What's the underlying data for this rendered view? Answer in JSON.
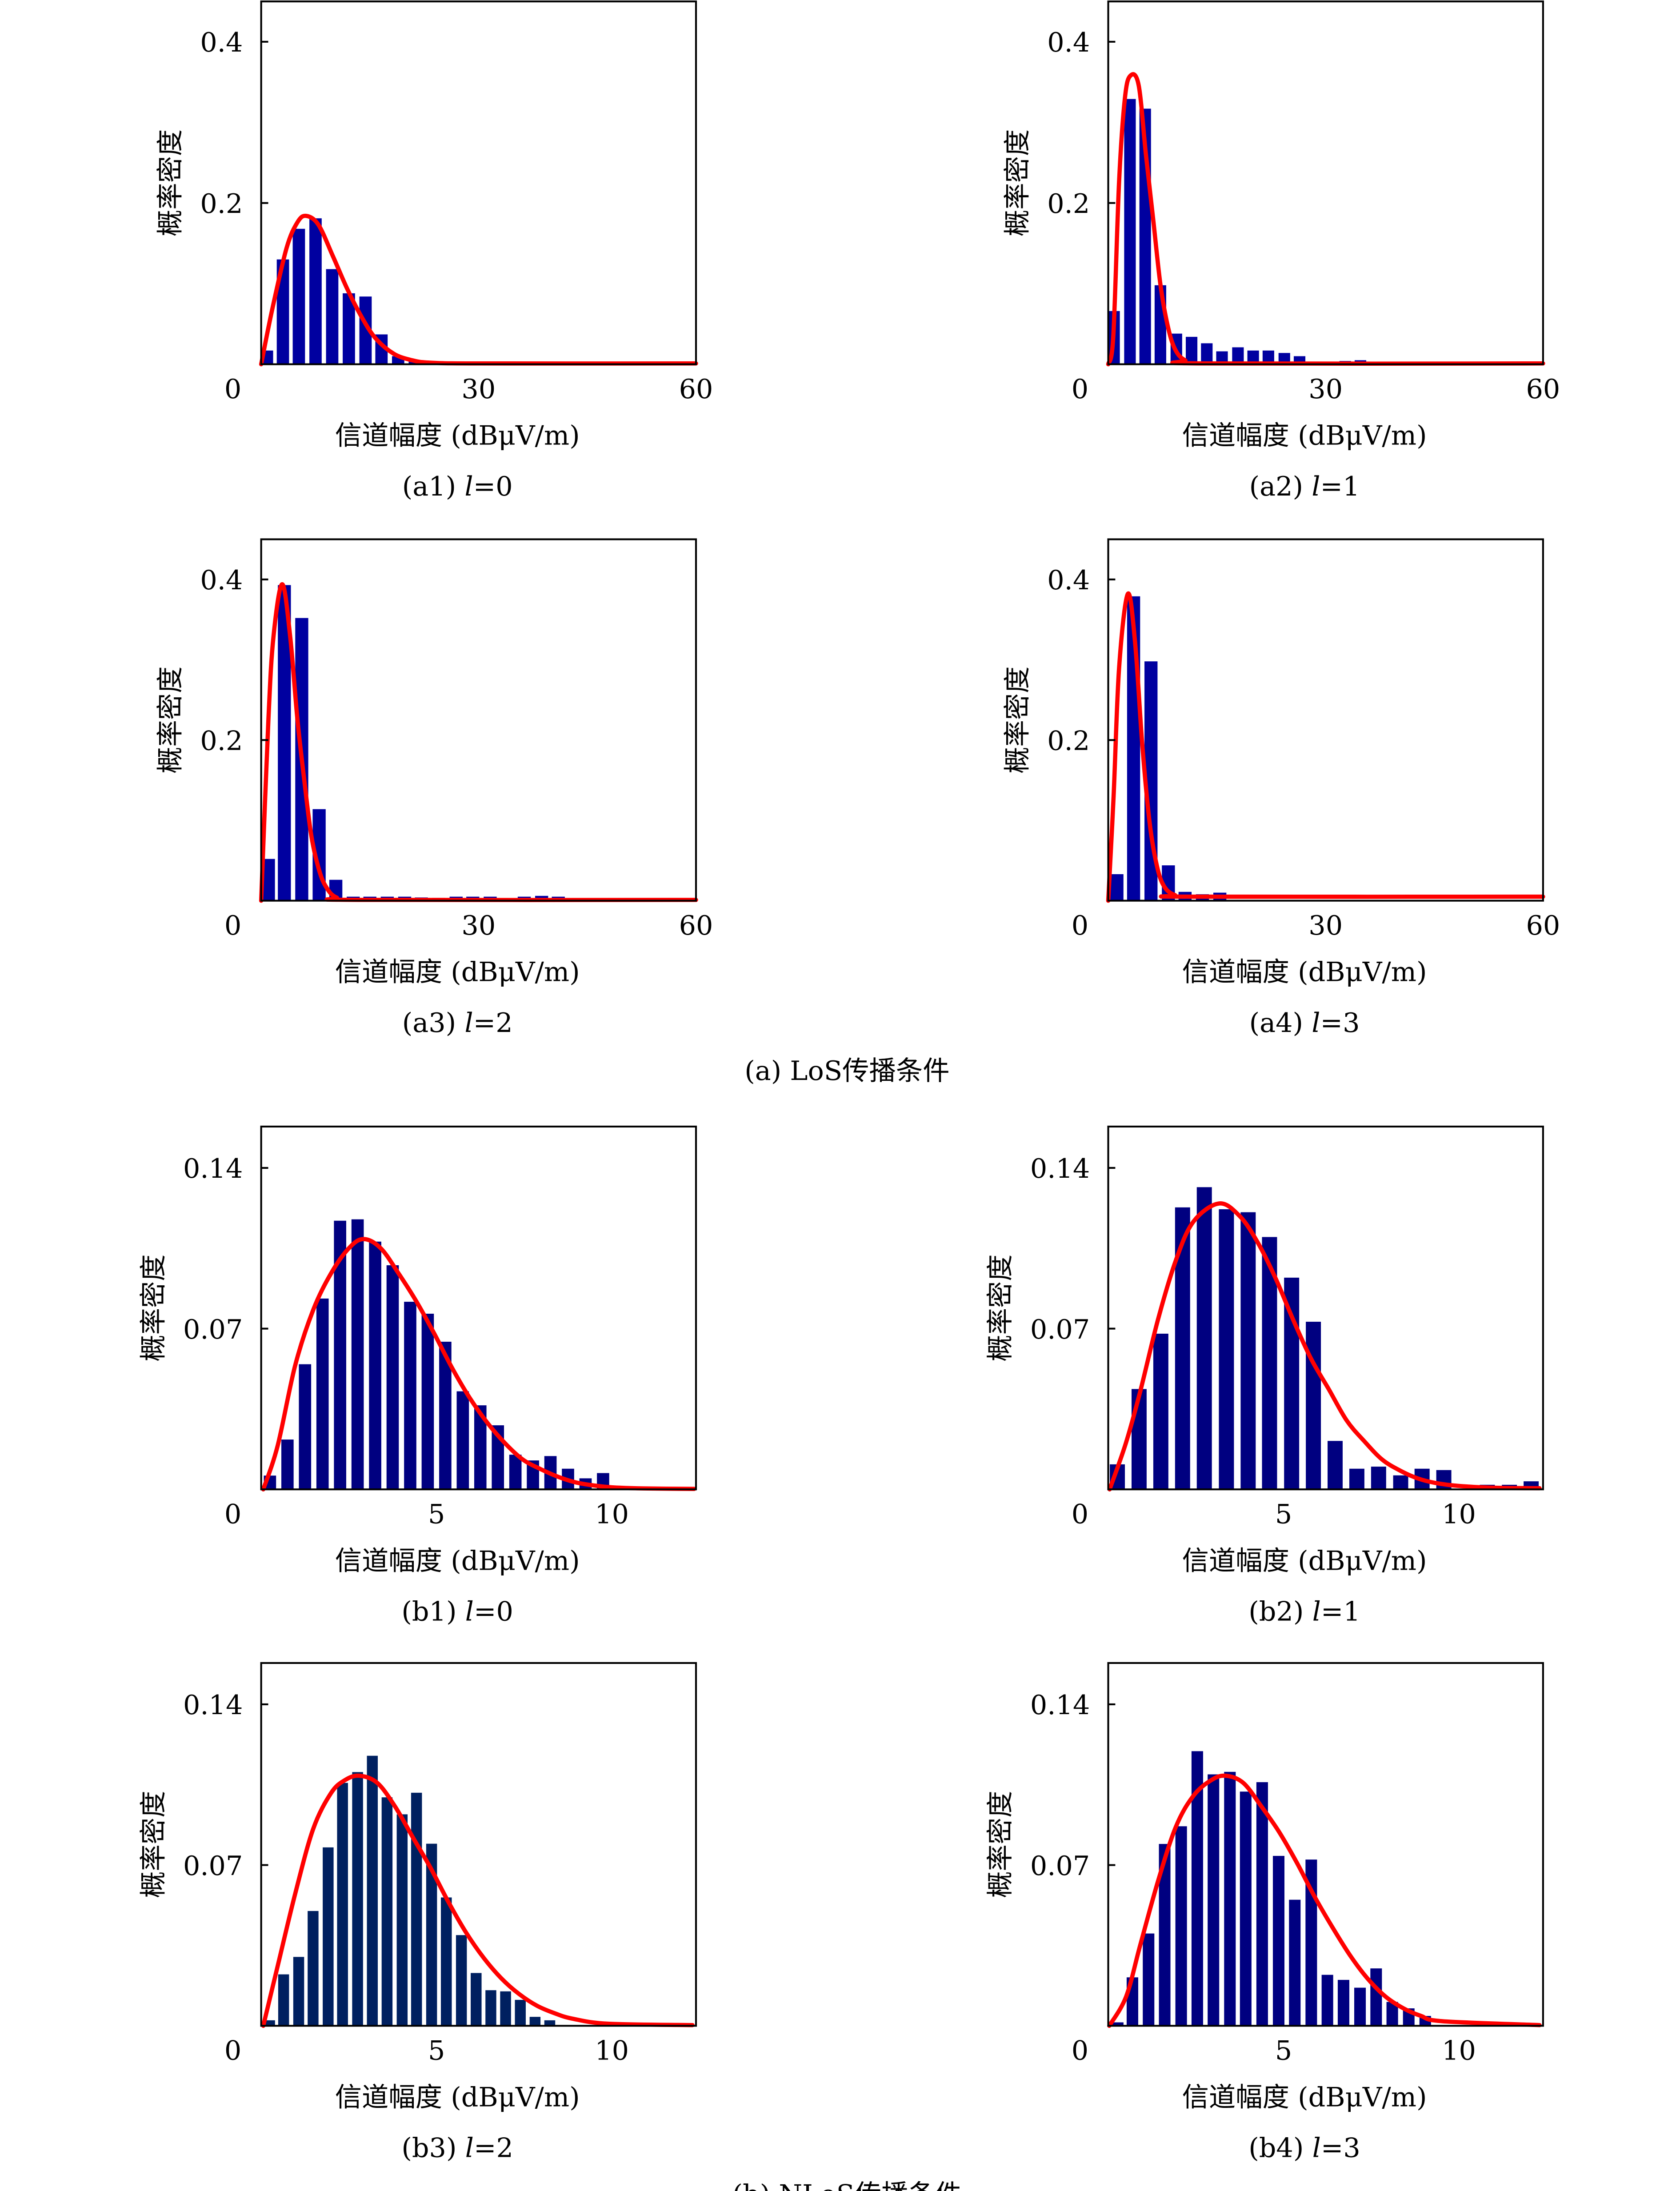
{
  "figure": {
    "group_a_caption": "(a) LoS传播条件",
    "group_b_caption": "(b) NLoS传播条件"
  },
  "colors": {
    "fit_curve": "#FF0000",
    "frame": "#000000"
  },
  "chart_data": [
    {
      "id": "a1",
      "type": "bar",
      "group": "a",
      "caption": {
        "label": "(a1)",
        "var": "l",
        "eq": "=0"
      },
      "xlabel": "信道幅度 (dBμV/m)",
      "ylabel": "概率密度",
      "xlim": [
        0,
        60
      ],
      "ylim": [
        0,
        0.45
      ],
      "xticks": [
        30,
        60
      ],
      "xtick_labels": [
        "30",
        "60"
      ],
      "yticks": [
        0,
        0.2,
        0.4
      ],
      "ytick_labels": [
        "0",
        "0.2",
        "0.4"
      ],
      "bar_color": "#0000A0",
      "bar_width": 1.7,
      "bars": {
        "x": [
          0.8,
          3.0,
          5.2,
          7.5,
          9.8,
          12.1,
          14.4,
          16.6,
          18.9,
          21.2,
          23.5,
          28.2,
          32.7
        ],
        "y": [
          0.017,
          0.13,
          0.168,
          0.181,
          0.118,
          0.088,
          0.084,
          0.037,
          0.01,
          0.005,
          0.003,
          0.003,
          0.003
        ]
      },
      "fit_curve": {
        "x": [
          0,
          1.5,
          3.5,
          5,
          6.2,
          7.9,
          9.9,
          11.9,
          13.9,
          15.8,
          18.3,
          20.8,
          23.3,
          30,
          60
        ],
        "y": [
          0,
          0.067,
          0.144,
          0.176,
          0.184,
          0.173,
          0.134,
          0.093,
          0.058,
          0.032,
          0.013,
          0.005,
          0.002,
          0.001,
          0.001
        ]
      }
    },
    {
      "id": "a2",
      "type": "bar",
      "group": "a",
      "caption": {
        "label": "(a2)",
        "var": "l",
        "eq": "=1"
      },
      "xlabel": "信道幅度 (dBμV/m)",
      "ylabel": "概率密度",
      "xlim": [
        0,
        60
      ],
      "ylim": [
        0,
        0.45
      ],
      "xticks": [
        30,
        60
      ],
      "xtick_labels": [
        "30",
        "60"
      ],
      "yticks": [
        0,
        0.2,
        0.4
      ],
      "ytick_labels": [
        "0",
        "0.2",
        "0.4"
      ],
      "bar_color": "#0000A0",
      "bar_width": 1.6,
      "bars": {
        "x": [
          0.8,
          3.0,
          5.1,
          7.2,
          9.4,
          11.5,
          13.6,
          15.7,
          17.9,
          20.0,
          22.1,
          24.3,
          26.4,
          32.7,
          34.8
        ],
        "y": [
          0.066,
          0.329,
          0.317,
          0.098,
          0.038,
          0.034,
          0.026,
          0.016,
          0.021,
          0.017,
          0.017,
          0.014,
          0.01,
          0.004,
          0.005
        ]
      },
      "fit_curve": {
        "x": [
          0,
          0.7,
          1.5,
          2.3,
          3.07,
          4.2,
          5.2,
          6.2,
          7.2,
          8.2,
          9.2,
          10.6,
          13.1,
          60
        ],
        "y": [
          0,
          0.035,
          0.227,
          0.33,
          0.358,
          0.346,
          0.26,
          0.18,
          0.099,
          0.048,
          0.019,
          0.005,
          0.001,
          0.001
        ]
      }
    },
    {
      "id": "a3",
      "type": "bar",
      "group": "a",
      "caption": {
        "label": "(a3)",
        "var": "l",
        "eq": "=2"
      },
      "xlabel": "信道幅度 (dBμV/m)",
      "ylabel": "概率密度",
      "xlim": [
        0,
        60
      ],
      "ylim": [
        0,
        0.45
      ],
      "xticks": [
        30,
        60
      ],
      "xtick_labels": [
        "30",
        "60"
      ],
      "yticks": [
        0,
        0.2,
        0.4
      ],
      "ytick_labels": [
        "0",
        "0.2",
        "0.4"
      ],
      "bar_color": "#0000A0",
      "bar_width": 1.8,
      "bars": {
        "x": [
          1.0,
          3.2,
          5.6,
          8.0,
          10.3,
          12.7,
          15.0,
          17.4,
          19.8,
          22.1,
          24.5,
          26.9,
          29.2,
          31.6,
          36.3,
          38.7,
          41.0,
          43.4,
          50.5
        ],
        "y": [
          0.052,
          0.393,
          0.352,
          0.114,
          0.026,
          0.005,
          0.005,
          0.005,
          0.005,
          0.004,
          0.0035,
          0.005,
          0.005,
          0.005,
          0.005,
          0.006,
          0.005,
          0.003,
          0.003
        ]
      },
      "fit_curve": {
        "x": [
          0,
          1.0,
          1.7,
          2.9,
          4.0,
          5.0,
          6.0,
          6.9,
          7.9,
          8.9,
          10.4,
          13.5,
          60
        ],
        "y": [
          0,
          0.226,
          0.329,
          0.394,
          0.329,
          0.226,
          0.146,
          0.082,
          0.041,
          0.018,
          0.004,
          0.001,
          0.001
        ]
      }
    },
    {
      "id": "a4",
      "type": "bar",
      "group": "a",
      "caption": {
        "label": "(a4)",
        "var": "l",
        "eq": "=3"
      },
      "xlabel": "信道幅度 (dBμV/m)",
      "ylabel": "概率密度",
      "xlim": [
        0,
        60
      ],
      "ylim": [
        0,
        0.45
      ],
      "xticks": [
        30,
        60
      ],
      "xtick_labels": [
        "30",
        "60"
      ],
      "yticks": [
        0,
        0.2,
        0.4
      ],
      "ytick_labels": [
        "0",
        "0.2",
        "0.4"
      ],
      "bar_color": "#0000A0",
      "bar_width": 1.8,
      "bars": {
        "x": [
          1.2,
          3.5,
          5.9,
          8.3,
          10.6,
          13.0,
          15.4
        ],
        "y": [
          0.033,
          0.379,
          0.298,
          0.044,
          0.011,
          0.008,
          0.01
        ]
      },
      "fit_curve": {
        "x": [
          0,
          0.74,
          1.5,
          2.7,
          3.7,
          4.7,
          5.7,
          6.7,
          7.7,
          9.2,
          11.6,
          60
        ],
        "y": [
          0,
          0.13,
          0.29,
          0.382,
          0.322,
          0.194,
          0.098,
          0.044,
          0.018,
          0.007,
          0.005,
          0.005
        ]
      }
    },
    {
      "id": "b1",
      "type": "bar",
      "group": "b",
      "caption": {
        "label": "(b1)",
        "var": "l",
        "eq": "=0"
      },
      "xlabel": "信道幅度 (dBμV/m)",
      "ylabel": "概率密度",
      "xlim": [
        0,
        12.4
      ],
      "ylim": [
        0,
        0.158
      ],
      "xticks": [
        5,
        10
      ],
      "xtick_labels": [
        "5",
        "10"
      ],
      "yticks": [
        0,
        0.07,
        0.14
      ],
      "ytick_labels": [
        "0",
        "0.07",
        "0.14"
      ],
      "bar_color": "#000080",
      "bar_width": 0.35,
      "bars": {
        "x": [
          0.25,
          0.75,
          1.25,
          1.75,
          2.25,
          2.75,
          3.25,
          3.75,
          4.25,
          4.75,
          5.25,
          5.75,
          6.25,
          6.75,
          7.25,
          7.75,
          8.25,
          8.75,
          9.25,
          9.75
        ],
        "y": [
          0.006,
          0.0217,
          0.0545,
          0.0831,
          0.117,
          0.1176,
          0.1079,
          0.0976,
          0.0817,
          0.0765,
          0.0643,
          0.0427,
          0.0366,
          0.0279,
          0.0151,
          0.0126,
          0.0145,
          0.009,
          0.0048,
          0.0071
        ]
      },
      "fit_curve": {
        "x": [
          0.06,
          0.47,
          0.97,
          1.48,
          1.99,
          2.5,
          2.92,
          3.41,
          3.92,
          4.42,
          4.93,
          5.44,
          5.94,
          6.45,
          6.96,
          7.46,
          7.97,
          8.48,
          8.98,
          9.49,
          10.0,
          10.9,
          12.35
        ],
        "y": [
          0,
          0.019,
          0.054,
          0.078,
          0.094,
          0.105,
          0.109,
          0.105,
          0.094,
          0.082,
          0.068,
          0.053,
          0.04,
          0.029,
          0.02,
          0.013,
          0.0088,
          0.0054,
          0.003,
          0.0017,
          0.0009,
          0.0004,
          0.0002
        ]
      }
    },
    {
      "id": "b2",
      "type": "bar",
      "group": "b",
      "caption": {
        "label": "(b2)",
        "var": "l",
        "eq": "=1"
      },
      "xlabel": "信道幅度 (dBμV/m)",
      "ylabel": "概率密度",
      "xlim": [
        0,
        12.4
      ],
      "ylim": [
        0,
        0.158
      ],
      "xticks": [
        5,
        10
      ],
      "xtick_labels": [
        "5",
        "10"
      ],
      "yticks": [
        0,
        0.07,
        0.14
      ],
      "ytick_labels": [
        "0",
        "0.07",
        "0.14"
      ],
      "bar_color": "#000080",
      "bar_width": 0.43,
      "bars": {
        "x": [
          0.26,
          0.88,
          1.5,
          2.12,
          2.74,
          3.37,
          3.99,
          4.6,
          5.23,
          5.85,
          6.47,
          7.09,
          7.71,
          8.34,
          8.95,
          9.57,
          10.81,
          11.44,
          12.06
        ],
        "y": [
          0.0109,
          0.0437,
          0.0678,
          0.1228,
          0.1316,
          0.122,
          0.1207,
          0.1099,
          0.0922,
          0.073,
          0.0211,
          0.009,
          0.0099,
          0.0061,
          0.009,
          0.0084,
          0.002,
          0.002,
          0.0035
        ]
      },
      "fit_curve": {
        "x": [
          0.04,
          0.5,
          0.91,
          1.42,
          1.93,
          2.43,
          3.16,
          3.75,
          4.26,
          4.77,
          5.27,
          5.78,
          6.29,
          6.8,
          7.3,
          7.81,
          8.32,
          8.82,
          9.33,
          10.0,
          11.05,
          12.3
        ],
        "y": [
          0,
          0.02,
          0.0425,
          0.074,
          0.0998,
          0.1166,
          0.1245,
          0.119,
          0.1076,
          0.092,
          0.074,
          0.057,
          0.0436,
          0.03,
          0.021,
          0.013,
          0.0082,
          0.0048,
          0.0028,
          0.0015,
          0.0007,
          0.0005
        ]
      }
    },
    {
      "id": "b3",
      "type": "bar",
      "group": "b",
      "caption": {
        "label": "(b3)",
        "var": "l",
        "eq": "=2"
      },
      "xlabel": "信道幅度 (dBμV/m)",
      "ylabel": "概率密度",
      "xlim": [
        0,
        12.4
      ],
      "ylim": [
        0,
        0.158
      ],
      "xticks": [
        5,
        10
      ],
      "xtick_labels": [
        "5",
        "10"
      ],
      "yticks": [
        0,
        0.07,
        0.14
      ],
      "ytick_labels": [
        "0",
        "0.07",
        "0.14"
      ],
      "bar_color": "#002060",
      "bar_width": 0.31,
      "bars": {
        "x": [
          0.24,
          0.64,
          1.07,
          1.48,
          1.91,
          2.32,
          2.75,
          3.17,
          3.59,
          4.02,
          4.43,
          4.86,
          5.28,
          5.71,
          6.13,
          6.55,
          6.97,
          7.39,
          7.81,
          8.23
        ],
        "y": [
          0.0024,
          0.0224,
          0.03,
          0.05,
          0.0777,
          0.1058,
          0.1105,
          0.1176,
          0.0995,
          0.0921,
          0.1015,
          0.0793,
          0.0559,
          0.0395,
          0.023,
          0.0155,
          0.015,
          0.0113,
          0.0039,
          0.0024
        ]
      },
      "fit_curve": {
        "x": [
          0.06,
          0.47,
          0.97,
          1.48,
          1.99,
          2.39,
          2.8,
          3.31,
          3.81,
          4.32,
          4.83,
          5.33,
          5.84,
          6.35,
          6.86,
          7.36,
          7.87,
          8.38,
          8.88,
          9.9,
          12.3
        ],
        "y": [
          0,
          0.026,
          0.0575,
          0.0856,
          0.1013,
          0.107,
          0.1089,
          0.1058,
          0.0957,
          0.0822,
          0.0688,
          0.0542,
          0.0407,
          0.0295,
          0.0205,
          0.0138,
          0.0087,
          0.0054,
          0.0031,
          0.0009,
          0.0003
        ]
      }
    },
    {
      "id": "b4",
      "type": "bar",
      "group": "b",
      "caption": {
        "label": "(b4)",
        "var": "l",
        "eq": "=3"
      },
      "xlabel": "信道幅度 (dBμV/m)",
      "ylabel": "概率密度",
      "xlim": [
        0,
        12.4
      ],
      "ylim": [
        0,
        0.158
      ],
      "xticks": [
        5,
        10
      ],
      "xtick_labels": [
        "5",
        "10"
      ],
      "yticks": [
        0,
        0.07,
        0.14
      ],
      "ytick_labels": [
        "0",
        "0.07",
        "0.14"
      ],
      "bar_color": "#000080",
      "bar_width": 0.33,
      "bars": {
        "x": [
          0.27,
          0.69,
          1.15,
          1.61,
          2.08,
          2.54,
          3.0,
          3.47,
          3.92,
          4.39,
          4.86,
          5.32,
          5.79,
          6.25,
          6.71,
          7.18,
          7.64,
          8.1,
          8.57,
          9.04
        ],
        "y": [
          0.0015,
          0.0211,
          0.0402,
          0.0792,
          0.0869,
          0.1196,
          0.1095,
          0.1106,
          0.102,
          0.1061,
          0.074,
          0.0549,
          0.0724,
          0.0222,
          0.02,
          0.0166,
          0.025,
          0.0104,
          0.0076,
          0.0043
        ]
      },
      "fit_curve": {
        "x": [
          0.03,
          0.51,
          0.91,
          1.42,
          1.93,
          2.43,
          2.94,
          3.35,
          3.85,
          4.36,
          4.87,
          5.38,
          5.88,
          6.39,
          6.9,
          7.4,
          7.91,
          8.42,
          8.92,
          9.53,
          12.3
        ],
        "y": [
          0,
          0.0127,
          0.035,
          0.063,
          0.0867,
          0.1002,
          0.107,
          0.1089,
          0.1058,
          0.0957,
          0.0845,
          0.071,
          0.0564,
          0.043,
          0.0306,
          0.0205,
          0.0127,
          0.0076,
          0.0043,
          0.002,
          0.0003
        ]
      }
    }
  ]
}
